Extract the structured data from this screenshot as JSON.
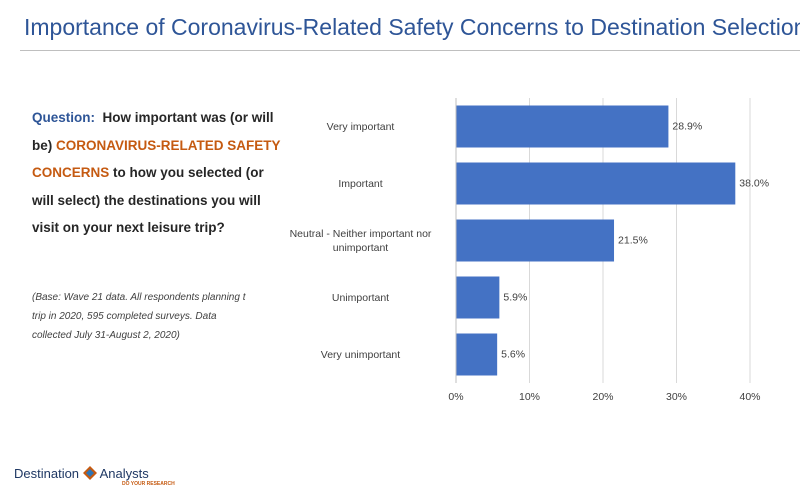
{
  "title": "Importance of Coronavirus-Related Safety Concerns to Destination Selection",
  "question": {
    "lead": "Question:",
    "part1": "How important was (or will be)",
    "highlight": "CORONAVIRUS-RELATED SAFETY CONCERNS",
    "part2": "to how you selected  (or will select) the destinations you will visit on your next leisure trip?"
  },
  "note": "(Base: Wave 21 data. All respondents planning t trip in 2020, 595 completed surveys. Data collected July 31-August 2, 2020)",
  "logo": {
    "word1": "Destination",
    "word2": "Analysts",
    "tagline": "DO YOUR RESEARCH"
  },
  "chart_data": {
    "type": "bar",
    "orientation": "horizontal",
    "categories": [
      "Very important",
      "Important",
      "Neutral - Neither important nor unimportant",
      "Unimportant",
      "Very unimportant"
    ],
    "values": [
      28.9,
      38.0,
      21.5,
      5.9,
      5.6
    ],
    "value_labels": [
      "28.9%",
      "38.0%",
      "21.5%",
      "5.9%",
      "5.6%"
    ],
    "color": "#4472c4",
    "xlim": [
      0,
      40
    ],
    "xticks": [
      {
        "value": 0,
        "label": "0%"
      },
      {
        "value": 10,
        "label": "10%"
      },
      {
        "value": 20,
        "label": "20%"
      },
      {
        "value": 30,
        "label": "30%"
      },
      {
        "value": 40,
        "label": "40%"
      }
    ],
    "grid": true
  }
}
